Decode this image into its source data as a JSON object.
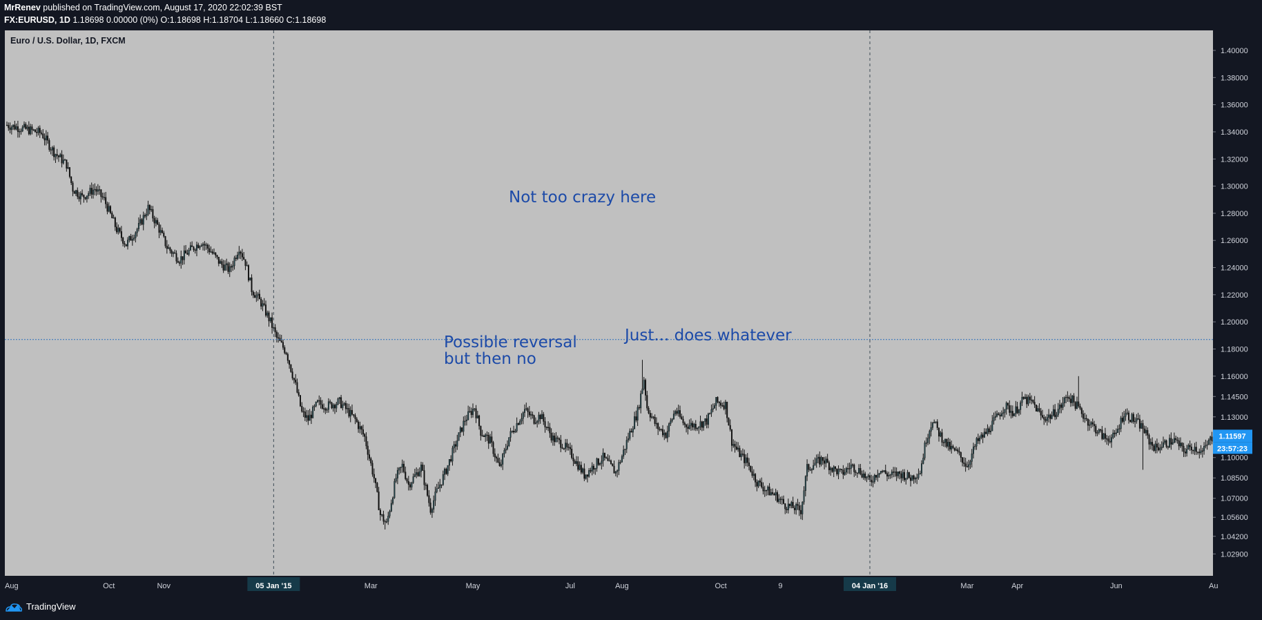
{
  "header": {
    "author": "MrRenev",
    "published_text": "published on TradingView.com, August 17, 2020 22:02:39 BST",
    "symbol": "FX:EURUSD, 1D",
    "ohlc_text": "1.18698 0.00000 (0%) O:1.18698 H:1.18704 L:1.18660 C:1.18698"
  },
  "instrument_title": "Euro / U.S. Dollar, 1D, FXCM",
  "annotations": {
    "top": "Not too crazy here",
    "reversal_line1": "Possible reversal",
    "reversal_line2": "but then no",
    "whatever": "Just... does whatever"
  },
  "footer": {
    "brand": "TradingView"
  },
  "colors": {
    "panel_bg": "#c0c0c0",
    "chrome_bg": "#131722",
    "candle_up": "#21444a",
    "candle_down": "#0f0f0f",
    "marker_line": "#2a6ebb",
    "annotation": "#1c4aa8",
    "price_badge": "#2196f3",
    "date_badge": "#163a49"
  },
  "chart_data": {
    "type": "candlestick",
    "title": "Euro / U.S. Dollar, 1D, FXCM",
    "ylim": [
      1.01,
      1.41
    ],
    "y_ticks": [
      "1.40000",
      "1.38000",
      "1.36000",
      "1.34000",
      "1.32000",
      "1.30000",
      "1.28000",
      "1.26000",
      "1.24000",
      "1.22000",
      "1.20000",
      "1.18000",
      "1.16000",
      "1.14500",
      "1.13000",
      "1.11500",
      "1.10000",
      "1.08500",
      "1.07000",
      "1.05600",
      "1.04200",
      "1.02900"
    ],
    "y_tick_values": [
      1.4,
      1.38,
      1.36,
      1.34,
      1.32,
      1.3,
      1.28,
      1.26,
      1.24,
      1.22,
      1.2,
      1.18,
      1.16,
      1.145,
      1.13,
      1.115,
      1.1,
      1.085,
      1.07,
      1.056,
      1.042,
      1.029
    ],
    "x_labels": [
      "Aug",
      "Oct",
      "Nov",
      "05 Jan '15",
      "Mar",
      "May",
      "Jul",
      "Aug",
      "Oct",
      "9",
      "04 Jan '16",
      "Mar",
      "Apr",
      "Jun",
      "Au"
    ],
    "x_label_index": [
      3,
      65,
      100,
      170,
      232,
      297,
      359,
      392,
      455,
      493,
      550,
      612,
      644,
      707,
      769
    ],
    "x_highlight": [
      "05 Jan '15",
      "04 Jan '16"
    ],
    "horizontal_line": 1.18698,
    "vertical_markers": [
      "05 Jan '15",
      "04 Jan '16"
    ],
    "last_price_label": "1.11597",
    "last_price": 1.11597,
    "countdown_label": "23:57:23",
    "close_path": [
      [
        0,
        1.345
      ],
      [
        12,
        1.342
      ],
      [
        22,
        1.339
      ],
      [
        30,
        1.325
      ],
      [
        38,
        1.316
      ],
      [
        42,
        1.298
      ],
      [
        48,
        1.292
      ],
      [
        56,
        1.298
      ],
      [
        62,
        1.29
      ],
      [
        70,
        1.268
      ],
      [
        76,
        1.257
      ],
      [
        84,
        1.27
      ],
      [
        90,
        1.284
      ],
      [
        96,
        1.271
      ],
      [
        102,
        1.255
      ],
      [
        110,
        1.246
      ],
      [
        118,
        1.254
      ],
      [
        124,
        1.259
      ],
      [
        130,
        1.252
      ],
      [
        136,
        1.243
      ],
      [
        142,
        1.238
      ],
      [
        148,
        1.255
      ],
      [
        152,
        1.244
      ],
      [
        156,
        1.224
      ],
      [
        162,
        1.214
      ],
      [
        168,
        1.2
      ],
      [
        172,
        1.188
      ],
      [
        178,
        1.178
      ],
      [
        184,
        1.153
      ],
      [
        188,
        1.133
      ],
      [
        192,
        1.128
      ],
      [
        198,
        1.14
      ],
      [
        204,
        1.138
      ],
      [
        212,
        1.141
      ],
      [
        222,
        1.128
      ],
      [
        228,
        1.115
      ],
      [
        234,
        1.085
      ],
      [
        238,
        1.058
      ],
      [
        242,
        1.051
      ],
      [
        248,
        1.085
      ],
      [
        252,
        1.094
      ],
      [
        256,
        1.08
      ],
      [
        264,
        1.093
      ],
      [
        270,
        1.062
      ],
      [
        274,
        1.075
      ],
      [
        280,
        1.091
      ],
      [
        286,
        1.11
      ],
      [
        292,
        1.128
      ],
      [
        298,
        1.137
      ],
      [
        302,
        1.119
      ],
      [
        308,
        1.112
      ],
      [
        314,
        1.092
      ],
      [
        320,
        1.115
      ],
      [
        326,
        1.127
      ],
      [
        330,
        1.135
      ],
      [
        336,
        1.128
      ],
      [
        340,
        1.131
      ],
      [
        348,
        1.114
      ],
      [
        354,
        1.11
      ],
      [
        360,
        1.102
      ],
      [
        368,
        1.087
      ],
      [
        374,
        1.094
      ],
      [
        380,
        1.1
      ],
      [
        388,
        1.089
      ],
      [
        392,
        1.101
      ],
      [
        396,
        1.115
      ],
      [
        402,
        1.134
      ],
      [
        406,
        1.158
      ],
      [
        408,
        1.137
      ],
      [
        414,
        1.123
      ],
      [
        420,
        1.117
      ],
      [
        426,
        1.135
      ],
      [
        432,
        1.124
      ],
      [
        440,
        1.124
      ],
      [
        446,
        1.127
      ],
      [
        452,
        1.141
      ],
      [
        458,
        1.139
      ],
      [
        462,
        1.112
      ],
      [
        466,
        1.104
      ],
      [
        472,
        1.096
      ],
      [
        478,
        1.082
      ],
      [
        484,
        1.076
      ],
      [
        490,
        1.072
      ],
      [
        496,
        1.065
      ],
      [
        502,
        1.063
      ],
      [
        506,
        1.061
      ],
      [
        510,
        1.092
      ],
      [
        514,
        1.095
      ],
      [
        520,
        1.099
      ],
      [
        526,
        1.092
      ],
      [
        532,
        1.088
      ],
      [
        538,
        1.094
      ],
      [
        544,
        1.09
      ],
      [
        550,
        1.082
      ],
      [
        556,
        1.091
      ],
      [
        562,
        1.087
      ],
      [
        570,
        1.088
      ],
      [
        576,
        1.085
      ],
      [
        582,
        1.09
      ],
      [
        586,
        1.114
      ],
      [
        590,
        1.128
      ],
      [
        594,
        1.118
      ],
      [
        600,
        1.108
      ],
      [
        606,
        1.103
      ],
      [
        612,
        1.094
      ],
      [
        618,
        1.111
      ],
      [
        624,
        1.118
      ],
      [
        630,
        1.128
      ],
      [
        636,
        1.138
      ],
      [
        642,
        1.133
      ],
      [
        648,
        1.143
      ],
      [
        654,
        1.14
      ],
      [
        660,
        1.129
      ],
      [
        666,
        1.131
      ],
      [
        672,
        1.138
      ],
      [
        676,
        1.146
      ],
      [
        682,
        1.138
      ],
      [
        688,
        1.128
      ],
      [
        694,
        1.121
      ],
      [
        700,
        1.114
      ],
      [
        706,
        1.115
      ],
      [
        712,
        1.133
      ],
      [
        718,
        1.128
      ],
      [
        724,
        1.122
      ],
      [
        728,
        1.112
      ],
      [
        732,
        1.107
      ],
      [
        738,
        1.11
      ],
      [
        744,
        1.113
      ],
      [
        750,
        1.105
      ],
      [
        756,
        1.108
      ],
      [
        762,
        1.104
      ],
      [
        768,
        1.115
      ]
    ],
    "wicks_extreme": [
      [
        405,
        1.172
      ],
      [
        683,
        1.16
      ],
      [
        241,
        1.047
      ],
      [
        507,
        1.054
      ],
      [
        724,
        1.091
      ],
      [
        762,
        1.1
      ]
    ]
  }
}
